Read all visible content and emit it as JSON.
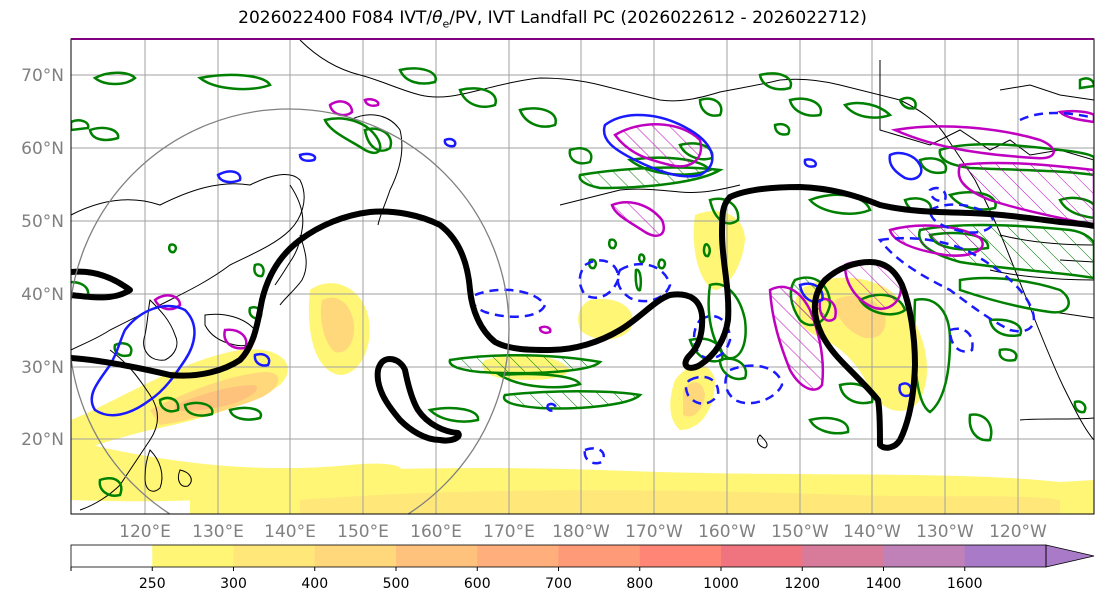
{
  "title": {
    "prefix": "2026022400 F084 IVT/",
    "theta": "θ",
    "theta_sub": "e",
    "suffix": "/PV, IVT Landfall PC (2026022612 - 2026022712)"
  },
  "lat_labels": [
    "70°N",
    "60°N",
    "50°N",
    "40°N",
    "30°N",
    "20°N"
  ],
  "lon_labels": [
    "120°E",
    "130°E",
    "140°E",
    "150°E",
    "160°E",
    "170°E",
    "180°W",
    "170°W",
    "160°W",
    "150°W",
    "140°W",
    "130°W",
    "120°W"
  ],
  "colorbar": {
    "levels": [
      "250",
      "300",
      "400",
      "500",
      "600",
      "700",
      "800",
      "1000",
      "1200",
      "1400",
      "1600"
    ],
    "colors": [
      "#ffffff",
      "#fff676",
      "#ffe77a",
      "#ffd87c",
      "#ffc27c",
      "#ffae7c",
      "#ff9a78",
      "#ff8576",
      "#f07480",
      "#d87a99",
      "#c080b8",
      "#a87ac8"
    ]
  },
  "colors": {
    "ivt_fill_low": "#fff676",
    "ivt_fill_mid": "#ffd87c",
    "ivt_fill_high": "#ffae7c",
    "pv_contour": "#000000",
    "theta_e_contour": "#1a1aff",
    "positive_contour": "#008000",
    "negative_contour": "#c000c0",
    "circle": "#808080",
    "grid": "#a0a0a0"
  }
}
